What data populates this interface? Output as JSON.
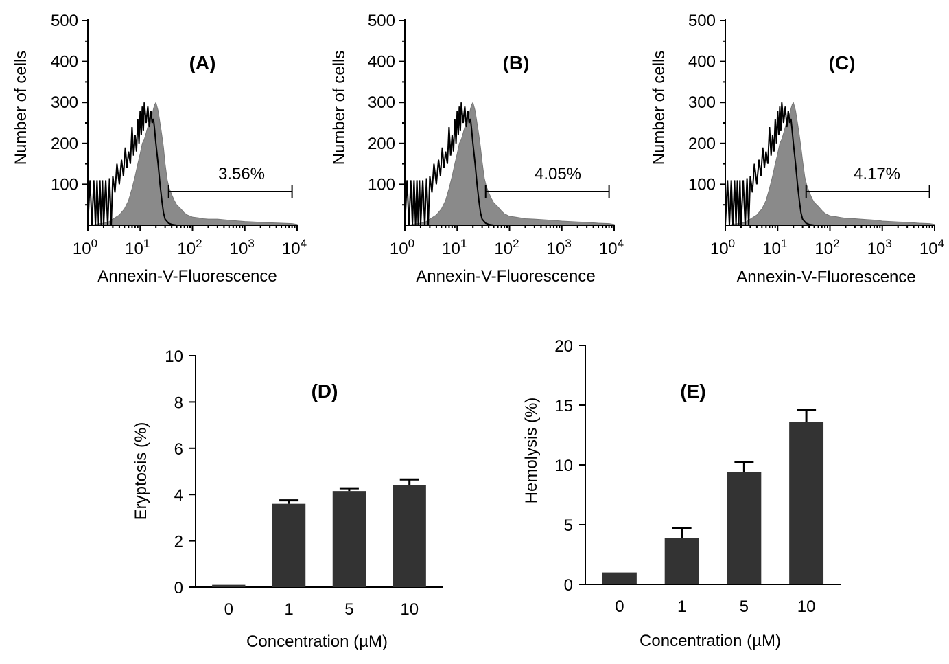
{
  "chart_data": [
    {
      "id": "A",
      "type": "area",
      "panel_label": "(A)",
      "xlabel": "Annexin-V-Fluorescence",
      "ylabel": "Number of cells",
      "x_scale": "log",
      "xlim": [
        1,
        10000
      ],
      "ylim": [
        0,
        500
      ],
      "y_ticks": [
        "100",
        "200",
        "300",
        "400",
        "500"
      ],
      "x_ticks": [
        {
          "base": "10",
          "exp": "0"
        },
        {
          "base": "10",
          "exp": "1"
        },
        {
          "base": "10",
          "exp": "2"
        },
        {
          "base": "10",
          "exp": "3"
        },
        {
          "base": "10",
          "exp": "4"
        }
      ],
      "gate": {
        "from": 35,
        "to": 8000,
        "label": "3.56%"
      },
      "series": [
        {
          "role": "filled",
          "x": [
            1,
            1.2,
            1.5,
            2,
            2.5,
            3,
            4,
            5,
            6,
            7,
            8,
            9,
            10,
            11,
            12,
            13,
            14,
            15,
            16,
            17,
            18,
            19,
            20,
            22,
            24,
            26,
            28,
            30,
            33,
            36,
            40,
            45,
            50,
            60,
            70,
            80,
            100,
            130,
            160,
            200,
            300,
            500,
            800,
            1000,
            2000,
            3000,
            5000,
            8000,
            10000
          ],
          "y": [
            0,
            0,
            3,
            5,
            8,
            15,
            25,
            40,
            60,
            90,
            120,
            150,
            175,
            200,
            210,
            225,
            240,
            255,
            260,
            270,
            285,
            295,
            300,
            280,
            250,
            220,
            190,
            150,
            110,
            90,
            75,
            60,
            50,
            40,
            30,
            25,
            20,
            18,
            16,
            15,
            15,
            12,
            10,
            9,
            7,
            6,
            5,
            4,
            2
          ]
        },
        {
          "role": "outline",
          "x": [
            1,
            1.1,
            1.2,
            1.3,
            1.4,
            1.5,
            1.6,
            1.7,
            1.8,
            1.9,
            2.0,
            2.2,
            2.4,
            2.6,
            2.8,
            3.0,
            3.3,
            3.6,
            4.0,
            4.4,
            4.8,
            5.2,
            5.6,
            6.0,
            6.5,
            7.0,
            7.5,
            8.0,
            8.5,
            9.0,
            9.5,
            10,
            10.5,
            11,
            11.5,
            12,
            13,
            14,
            15,
            16,
            17,
            18,
            19,
            20,
            22,
            24,
            26,
            28,
            30,
            35,
            40,
            50
          ],
          "y": [
            0,
            110,
            0,
            110,
            0,
            110,
            0,
            110,
            0,
            110,
            0,
            110,
            0,
            115,
            0,
            120,
            80,
            150,
            100,
            160,
            120,
            190,
            140,
            180,
            150,
            240,
            170,
            220,
            180,
            260,
            200,
            280,
            220,
            290,
            230,
            300,
            250,
            290,
            240,
            280,
            250,
            260,
            230,
            200,
            150,
            100,
            60,
            30,
            15,
            5,
            2,
            0
          ]
        }
      ]
    },
    {
      "id": "B",
      "type": "area",
      "panel_label": "(B)",
      "xlabel": "Annexin-V-Fluorescence",
      "ylabel": "Number of cells",
      "x_scale": "log",
      "xlim": [
        1,
        10000
      ],
      "ylim": [
        0,
        500
      ],
      "y_ticks": [
        "100",
        "200",
        "300",
        "400",
        "500"
      ],
      "x_ticks": [
        {
          "base": "10",
          "exp": "0"
        },
        {
          "base": "10",
          "exp": "1"
        },
        {
          "base": "10",
          "exp": "2"
        },
        {
          "base": "10",
          "exp": "3"
        },
        {
          "base": "10",
          "exp": "4"
        }
      ],
      "gate": {
        "from": 35,
        "to": 8000,
        "label": "4.05%"
      },
      "series": [
        {
          "role": "filled",
          "x": [
            1,
            1.2,
            1.5,
            2,
            2.5,
            3,
            4,
            5,
            6,
            7,
            8,
            9,
            10,
            11,
            12,
            13,
            14,
            15,
            16,
            17,
            18,
            19,
            20,
            22,
            24,
            26,
            28,
            30,
            33,
            36,
            40,
            45,
            50,
            60,
            70,
            80,
            100,
            130,
            160,
            200,
            300,
            500,
            800,
            1000,
            2000,
            3000,
            5000,
            8000,
            10000
          ],
          "y": [
            0,
            0,
            3,
            5,
            8,
            15,
            25,
            40,
            60,
            90,
            120,
            150,
            175,
            200,
            210,
            225,
            240,
            255,
            260,
            270,
            285,
            295,
            300,
            280,
            250,
            220,
            190,
            155,
            115,
            95,
            80,
            65,
            55,
            45,
            35,
            28,
            22,
            20,
            18,
            16,
            15,
            13,
            11,
            10,
            8,
            7,
            5,
            4,
            2
          ]
        },
        {
          "role": "outline",
          "x": [
            1,
            1.1,
            1.2,
            1.3,
            1.4,
            1.5,
            1.6,
            1.7,
            1.8,
            1.9,
            2.0,
            2.2,
            2.4,
            2.6,
            2.8,
            3.0,
            3.3,
            3.6,
            4.0,
            4.4,
            4.8,
            5.2,
            5.6,
            6.0,
            6.5,
            7.0,
            7.5,
            8.0,
            8.5,
            9.0,
            9.5,
            10,
            10.5,
            11,
            11.5,
            12,
            13,
            14,
            15,
            16,
            17,
            18,
            19,
            20,
            22,
            24,
            26,
            28,
            30,
            35,
            40,
            50
          ],
          "y": [
            0,
            110,
            0,
            110,
            0,
            110,
            0,
            110,
            0,
            110,
            0,
            110,
            0,
            115,
            0,
            120,
            80,
            150,
            100,
            160,
            120,
            190,
            140,
            180,
            150,
            240,
            170,
            220,
            180,
            260,
            200,
            280,
            220,
            290,
            230,
            300,
            250,
            290,
            240,
            280,
            250,
            260,
            230,
            200,
            150,
            100,
            60,
            30,
            15,
            5,
            2,
            0
          ]
        }
      ]
    },
    {
      "id": "C",
      "type": "area",
      "panel_label": "(C)",
      "xlabel": "Annexin-V-Fluorescence",
      "ylabel": "Number of cells",
      "x_scale": "log",
      "xlim": [
        1,
        10000
      ],
      "ylim": [
        0,
        500
      ],
      "y_ticks": [
        "100",
        "200",
        "300",
        "400",
        "500"
      ],
      "x_ticks": [
        {
          "base": "10",
          "exp": "0"
        },
        {
          "base": "10",
          "exp": "1"
        },
        {
          "base": "10",
          "exp": "2"
        },
        {
          "base": "10",
          "exp": "3"
        },
        {
          "base": "10",
          "exp": "4"
        }
      ],
      "gate": {
        "from": 35,
        "to": 8000,
        "label": "4.17%"
      },
      "series": [
        {
          "role": "filled",
          "x": [
            1,
            1.2,
            1.5,
            2,
            2.5,
            3,
            4,
            5,
            6,
            7,
            8,
            9,
            10,
            11,
            12,
            13,
            14,
            15,
            16,
            17,
            18,
            19,
            20,
            22,
            24,
            26,
            28,
            30,
            33,
            36,
            40,
            45,
            50,
            60,
            70,
            80,
            100,
            130,
            160,
            200,
            300,
            500,
            800,
            1000,
            2000,
            3000,
            5000,
            8000,
            10000
          ],
          "y": [
            0,
            0,
            3,
            5,
            8,
            15,
            25,
            40,
            60,
            90,
            120,
            150,
            175,
            200,
            210,
            225,
            240,
            255,
            260,
            270,
            285,
            295,
            300,
            280,
            250,
            220,
            190,
            158,
            118,
            98,
            82,
            66,
            56,
            46,
            36,
            29,
            23,
            21,
            19,
            17,
            16,
            14,
            12,
            10,
            8,
            7,
            5,
            4,
            2
          ]
        },
        {
          "role": "outline",
          "x": [
            1,
            1.1,
            1.2,
            1.3,
            1.4,
            1.5,
            1.6,
            1.7,
            1.8,
            1.9,
            2.0,
            2.2,
            2.4,
            2.6,
            2.8,
            3.0,
            3.3,
            3.6,
            4.0,
            4.4,
            4.8,
            5.2,
            5.6,
            6.0,
            6.5,
            7.0,
            7.5,
            8.0,
            8.5,
            9.0,
            9.5,
            10,
            10.5,
            11,
            11.5,
            12,
            13,
            14,
            15,
            16,
            17,
            18,
            19,
            20,
            22,
            24,
            26,
            28,
            30,
            35,
            40,
            50
          ],
          "y": [
            0,
            110,
            0,
            110,
            0,
            110,
            0,
            110,
            0,
            110,
            0,
            110,
            0,
            115,
            0,
            120,
            80,
            150,
            100,
            160,
            120,
            190,
            140,
            180,
            150,
            240,
            170,
            220,
            180,
            260,
            200,
            280,
            220,
            290,
            230,
            300,
            250,
            290,
            240,
            280,
            250,
            260,
            230,
            200,
            150,
            100,
            60,
            30,
            15,
            5,
            2,
            0
          ]
        }
      ]
    },
    {
      "id": "D",
      "type": "bar",
      "panel_label": "(D)",
      "categories": [
        "0",
        "1",
        "5",
        "10"
      ],
      "values": [
        0.1,
        3.6,
        4.15,
        4.4
      ],
      "errors": [
        0,
        0.15,
        0.12,
        0.25
      ],
      "xlabel": "Concentration (µM)",
      "ylabel": "Eryptosis (%)",
      "ylim": [
        0,
        10
      ],
      "y_ticks": [
        "0",
        "2",
        "4",
        "6",
        "8",
        "10"
      ]
    },
    {
      "id": "E",
      "type": "bar",
      "panel_label": "(E)",
      "categories": [
        "0",
        "1",
        "5",
        "10"
      ],
      "values": [
        1.0,
        3.9,
        9.4,
        13.6
      ],
      "errors": [
        0,
        0.8,
        0.8,
        1.0
      ],
      "xlabel": "Concentration (µM)",
      "ylabel": "Hemolysis (%)",
      "ylim": [
        0,
        20
      ],
      "y_ticks": [
        "0",
        "5",
        "10",
        "15",
        "20"
      ]
    }
  ]
}
